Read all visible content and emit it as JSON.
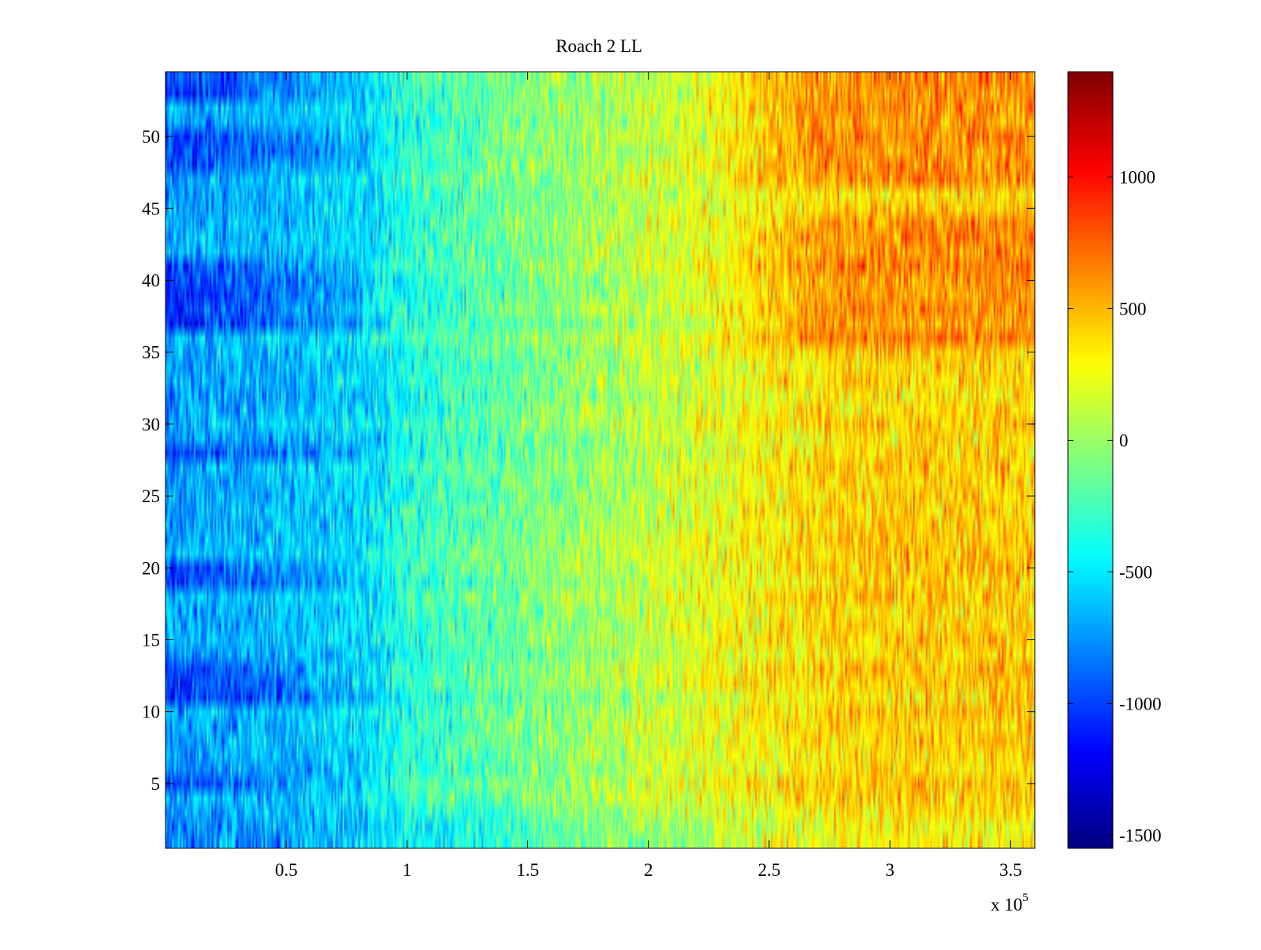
{
  "chart_data": {
    "type": "heatmap",
    "title": "Roach 2 LL",
    "xlabel": "",
    "ylabel": "",
    "x_exponent_label": "x 10",
    "x_exponent_power": "5",
    "xlim": [
      0,
      3.6
    ],
    "ylim": [
      0.5,
      54.5
    ],
    "x_ticks": [
      0.5,
      1,
      1.5,
      2,
      2.5,
      3,
      3.5
    ],
    "x_tick_labels": [
      "0.5",
      "1",
      "1.5",
      "2",
      "2.5",
      "3",
      "3.5"
    ],
    "y_ticks": [
      5,
      10,
      15,
      20,
      25,
      30,
      35,
      40,
      45,
      50
    ],
    "y_tick_labels": [
      "5",
      "10",
      "15",
      "20",
      "25",
      "30",
      "35",
      "40",
      "45",
      "50"
    ],
    "rows": 54,
    "colormap": "jet",
    "colorbar": {
      "clim": [
        -1550,
        1400
      ],
      "ticks": [
        -1500,
        -1000,
        -500,
        0,
        500,
        1000
      ],
      "tick_labels": [
        "-1500",
        "-1000",
        "-500",
        "0",
        "500",
        "1000"
      ]
    },
    "trend_x": [
      0,
      0.5,
      0.85,
      1.0,
      1.5,
      2.0,
      2.5,
      2.8,
      3.2,
      3.6
    ],
    "trend_base": [
      -720,
      -640,
      -520,
      -340,
      -100,
      120,
      320,
      420,
      430,
      430
    ],
    "dark_rows": [
      5,
      11,
      12,
      13,
      19,
      20,
      28,
      37,
      38,
      39,
      40,
      41,
      48,
      49,
      50,
      53,
      54
    ],
    "hot_rows": [
      36,
      37,
      38,
      39,
      40,
      41,
      42,
      43,
      44,
      47,
      48,
      49,
      50,
      51,
      52,
      53,
      54
    ],
    "noise_amplitude": 260
  }
}
